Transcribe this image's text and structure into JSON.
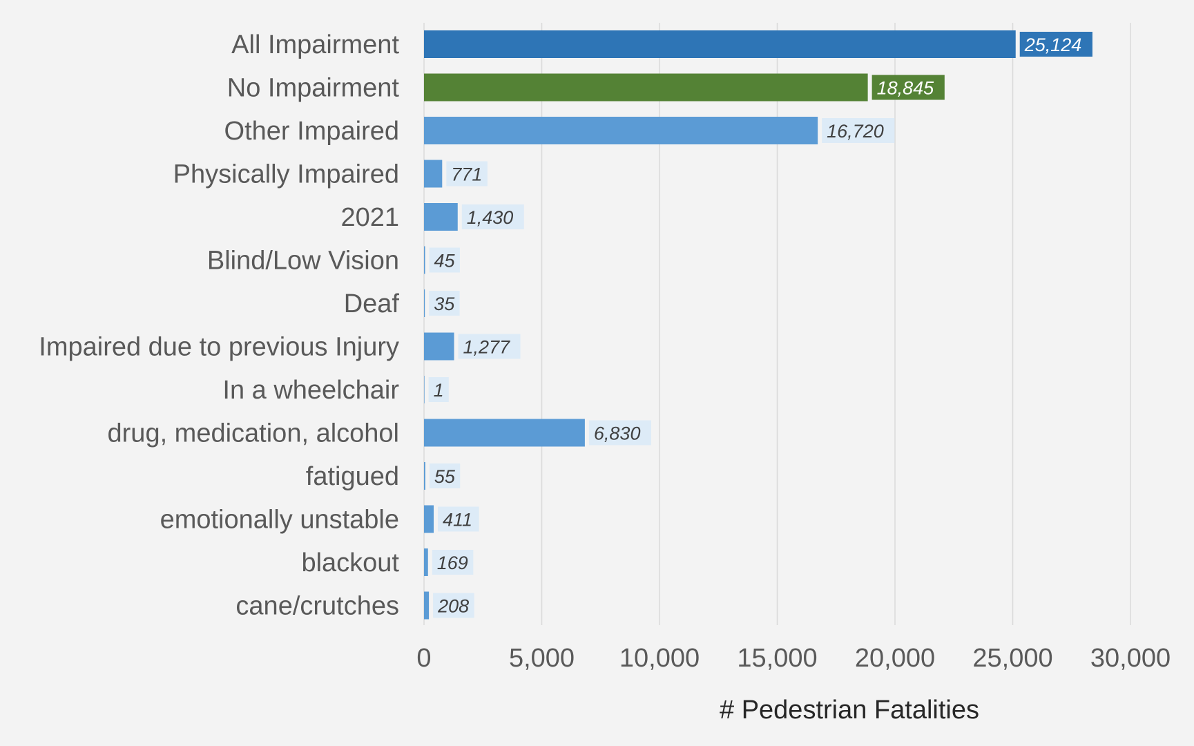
{
  "chart_data": {
    "type": "bar",
    "orientation": "horizontal",
    "categories": [
      "All Impairment",
      "No Impairment",
      "Other Impaired",
      "Physically Impaired",
      "2021",
      "Blind/Low Vision",
      "Deaf",
      "Impaired due to previous Injury",
      "In a wheelchair",
      "drug, medication, alcohol",
      "fatigued",
      "emotionally unstable",
      "blackout",
      "cane/crutches"
    ],
    "values": [
      25124,
      18845,
      16720,
      771,
      1430,
      45,
      35,
      1277,
      1,
      6830,
      55,
      411,
      169,
      208
    ],
    "data_labels": [
      "25,124",
      "18,845",
      "16,720",
      "771",
      "1,430",
      "45",
      "35",
      "1,277",
      "1",
      "6,830",
      "55",
      "411",
      "169",
      "208"
    ],
    "bar_colors": [
      "#2e75b6",
      "#548235",
      "#5b9bd5",
      "#5b9bd5",
      "#5b9bd5",
      "#5b9bd5",
      "#5b9bd5",
      "#5b9bd5",
      "#5b9bd5",
      "#5b9bd5",
      "#5b9bd5",
      "#5b9bd5",
      "#5b9bd5",
      "#5b9bd5"
    ],
    "label_box_colors": [
      "#2e75b6",
      "#548235",
      "#ddebf7",
      "#ddebf7",
      "#ddebf7",
      "#ddebf7",
      "#ddebf7",
      "#ddebf7",
      "#ddebf7",
      "#ddebf7",
      "#ddebf7",
      "#ddebf7",
      "#ddebf7",
      "#ddebf7"
    ],
    "label_text_colors": [
      "#ffffff",
      "#ffffff",
      "#404040",
      "#404040",
      "#404040",
      "#404040",
      "#404040",
      "#404040",
      "#404040",
      "#404040",
      "#404040",
      "#404040",
      "#404040",
      "#404040"
    ],
    "xlabel": "# Pedestrian Fatalities",
    "ylabel": "",
    "title": "",
    "xlim": [
      0,
      30000
    ],
    "xticks": [
      0,
      5000,
      10000,
      15000,
      20000,
      25000,
      30000
    ],
    "xtick_labels": [
      "0",
      "5,000",
      "10,000",
      "15,000",
      "20,000",
      "25,000",
      "30,000"
    ],
    "grid": "vertical",
    "legend": "none"
  },
  "colors": {
    "background": "#f3f3f3",
    "gridline": "#d9d9d9"
  }
}
